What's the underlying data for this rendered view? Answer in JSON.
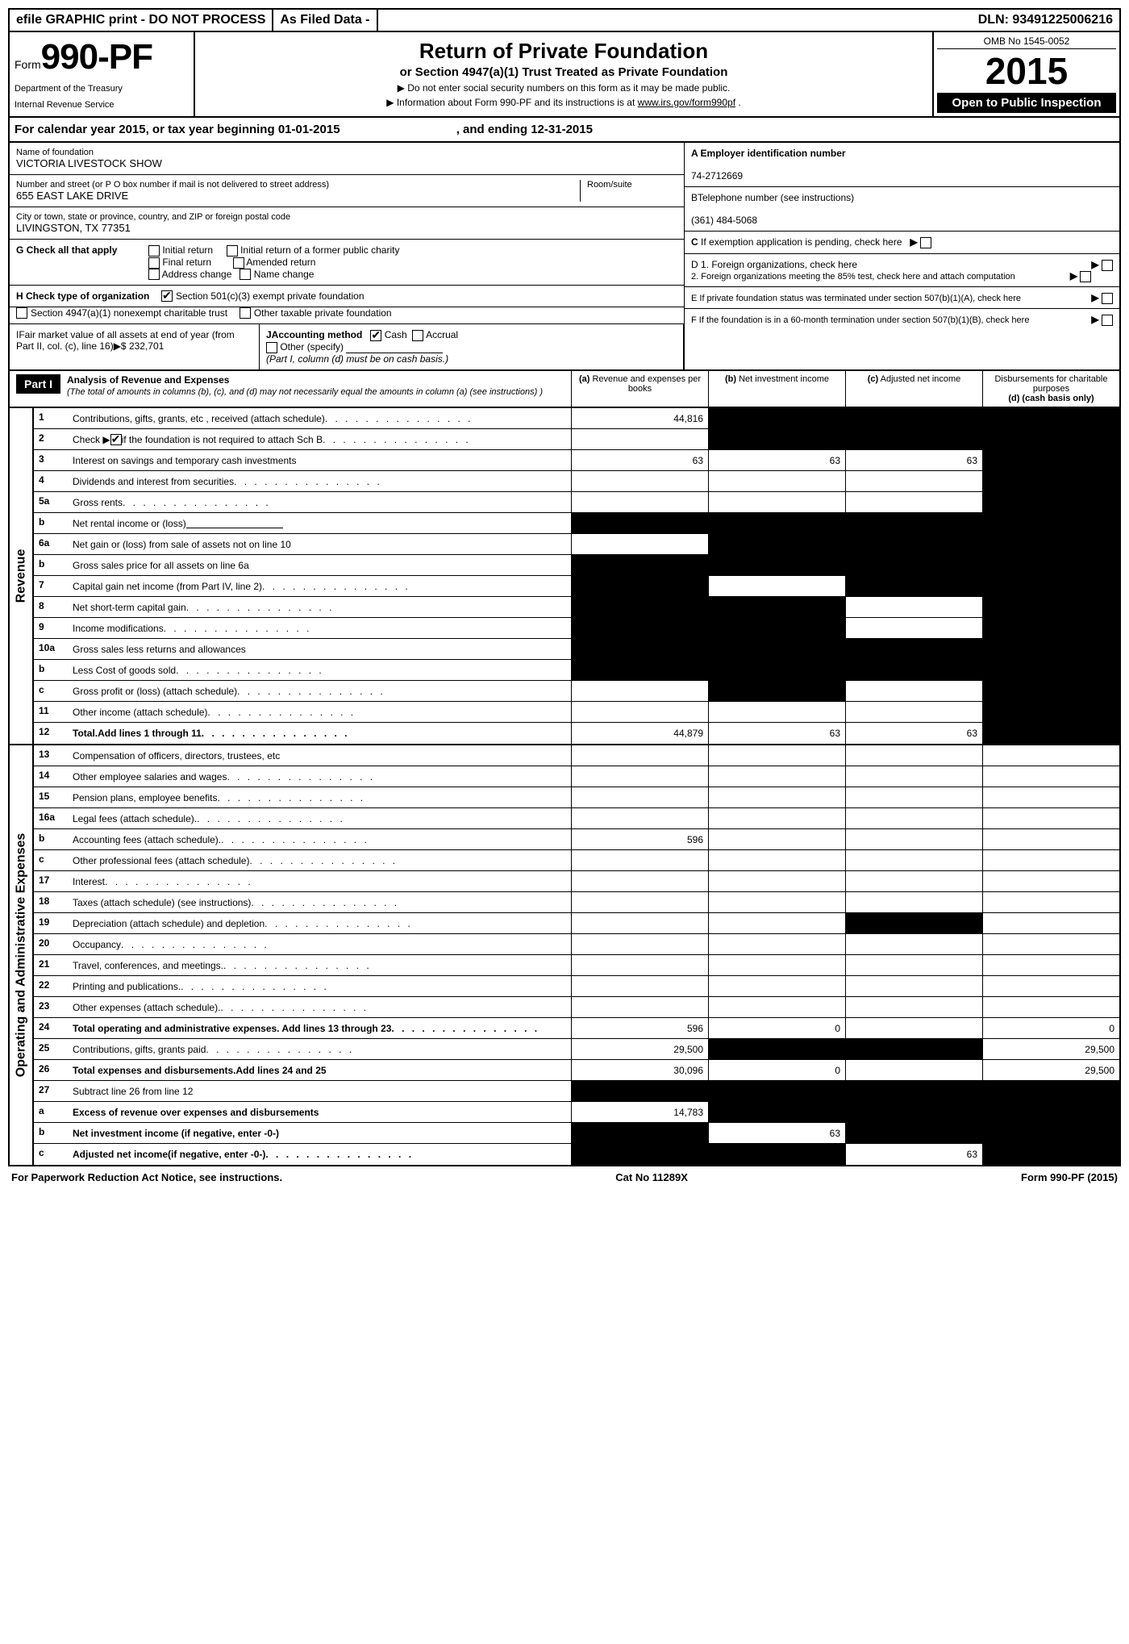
{
  "topbar": {
    "efile": "efile GRAPHIC print - DO NOT PROCESS",
    "asfiled": "As Filed Data -",
    "dln_label": "DLN:",
    "dln": "93491225006216"
  },
  "header": {
    "form_word": "Form",
    "form_num": "990-PF",
    "dept1": "Department of the Treasury",
    "dept2": "Internal Revenue Service",
    "title": "Return of Private Foundation",
    "subtitle": "or Section 4947(a)(1) Trust Treated as Private Foundation",
    "note1": "▶ Do not enter social security numbers on this form as it may be made public.",
    "note2": "▶ Information about Form 990-PF and its instructions is at ",
    "link": "www.irs.gov/form990pf",
    "omb": "OMB No 1545-0052",
    "year": "2015",
    "open": "Open to Public Inspection"
  },
  "cal": {
    "text1": "For calendar year 2015, or tax year beginning ",
    "begin": "01-01-2015",
    "text2": " , and ending ",
    "end": "12-31-2015"
  },
  "foundation": {
    "name_label": "Name of foundation",
    "name": "VICTORIA LIVESTOCK SHOW",
    "addr_label": "Number and street (or P O box number if mail is not delivered to street address)",
    "room_label": "Room/suite",
    "addr": "655 EAST LAKE DRIVE",
    "city_label": "City or town, state or province, country, and ZIP or foreign postal code",
    "city": "LIVINGSTON, TX 77351"
  },
  "right": {
    "a_label": "A Employer identification number",
    "ein": "74-2712669",
    "b_label": "BTelephone number (see instructions)",
    "phone": "(361) 484-5068",
    "c_label": "C If exemption application is pending, check here",
    "d1": "D 1. Foreign organizations, check here",
    "d2": "2. Foreign organizations meeting the 85% test, check here and attach computation",
    "e": "E If private foundation status was terminated under section 507(b)(1)(A), check here",
    "f": "F If the foundation is in a 60-month termination under section 507(b)(1)(B), check here"
  },
  "g": {
    "label": "G Check all that apply",
    "initial": "Initial return",
    "initial_former": "Initial return of a former public charity",
    "final": "Final return",
    "amended": "Amended return",
    "addr_change": "Address change",
    "name_change": "Name change"
  },
  "h": {
    "label": "H Check type of organization",
    "opt1": "Section 501(c)(3) exempt private foundation",
    "opt2": "Section 4947(a)(1) nonexempt charitable trust",
    "opt3": "Other taxable private foundation"
  },
  "i": {
    "label": "IFair market value of all assets at end of year (from Part II, col. (c), line 16)▶$ ",
    "value": "232,701"
  },
  "j": {
    "label": "JAccounting method",
    "cash": "Cash",
    "accrual": "Accrual",
    "other": "Other (specify)",
    "note": "(Part I, column (d) must be on cash basis.)"
  },
  "part1": {
    "label": "Part I",
    "title": "Analysis of Revenue and Expenses",
    "note": "(The total of amounts in columns (b), (c), and (d) may not necessarily equal the amounts in column (a) (see instructions) )",
    "col_a": "(a)",
    "col_a_txt": "Revenue and expenses per books",
    "col_b": "(b)",
    "col_b_txt": "Net investment income",
    "col_c": "(c)",
    "col_c_txt": "Adjusted net income",
    "col_d_txt": "Disbursements for charitable purposes",
    "col_d_note": "(d) (cash basis only)"
  },
  "side_labels": {
    "revenue": "Revenue",
    "expenses": "Operating and Administrative Expenses"
  },
  "lines": [
    {
      "n": "1",
      "d": "Contributions, gifts, grants, etc , received (attach schedule)",
      "dots": true,
      "a": "44,816",
      "b": "shade",
      "c": "shade",
      "dd": "shade"
    },
    {
      "n": "2",
      "d": "Check ▶ ☑ if the foundation is not required to attach Sch B",
      "dots": true,
      "a": "",
      "b": "shade",
      "c": "shade",
      "dd": "shade",
      "nothtml": true
    },
    {
      "n": "3",
      "d": "Interest on savings and temporary cash investments",
      "a": "63",
      "b": "63",
      "c": "63",
      "dd": "shade"
    },
    {
      "n": "4",
      "d": "Dividends and interest from securities",
      "dots": true,
      "a": "",
      "b": "",
      "c": "",
      "dd": "shade"
    },
    {
      "n": "5a",
      "d": "Gross rents",
      "dots": true,
      "a": "",
      "b": "",
      "c": "",
      "dd": "shade"
    },
    {
      "n": "b",
      "d": "Net rental income or (loss) ",
      "blank": true,
      "a": "shade",
      "b": "shade",
      "c": "shade",
      "dd": "shade"
    },
    {
      "n": "6a",
      "d": "Net gain or (loss) from sale of assets not on line 10",
      "a": "",
      "b": "shade",
      "c": "shade",
      "dd": "shade"
    },
    {
      "n": "b",
      "d": "Gross sales price for all assets on line 6a",
      "a": "shade",
      "b": "shade",
      "c": "shade",
      "dd": "shade"
    },
    {
      "n": "7",
      "d": "Capital gain net income (from Part IV, line 2)",
      "dots": true,
      "a": "shade",
      "b": "",
      "c": "shade",
      "dd": "shade"
    },
    {
      "n": "8",
      "d": "Net short-term capital gain",
      "dots": true,
      "a": "shade",
      "b": "shade",
      "c": "",
      "dd": "shade"
    },
    {
      "n": "9",
      "d": "Income modifications",
      "dots": true,
      "a": "shade",
      "b": "shade",
      "c": "",
      "dd": "shade"
    },
    {
      "n": "10a",
      "d": "Gross sales less returns and allowances",
      "a": "shade",
      "b": "shade",
      "c": "shade",
      "dd": "shade"
    },
    {
      "n": "b",
      "d": "Less Cost of goods sold",
      "dots": true,
      "a": "shade",
      "b": "shade",
      "c": "shade",
      "dd": "shade"
    },
    {
      "n": "c",
      "d": "Gross profit or (loss) (attach schedule)",
      "dots": true,
      "a": "",
      "b": "shade",
      "c": "",
      "dd": "shade"
    },
    {
      "n": "11",
      "d": "Other income (attach schedule)",
      "dots": true,
      "a": "",
      "b": "",
      "c": "",
      "dd": "shade"
    },
    {
      "n": "12",
      "d": "Total.Add lines 1 through 11",
      "dots": true,
      "bold": true,
      "a": "44,879",
      "b": "63",
      "c": "63",
      "dd": "shade"
    }
  ],
  "exp_lines": [
    {
      "n": "13",
      "d": "Compensation of officers, directors, trustees, etc",
      "a": "",
      "b": "",
      "c": "",
      "dd": ""
    },
    {
      "n": "14",
      "d": "Other employee salaries and wages",
      "dots": true,
      "a": "",
      "b": "",
      "c": "",
      "dd": ""
    },
    {
      "n": "15",
      "d": "Pension plans, employee benefits",
      "dots": true,
      "a": "",
      "b": "",
      "c": "",
      "dd": ""
    },
    {
      "n": "16a",
      "d": "Legal fees (attach schedule).",
      "dots": true,
      "a": "",
      "b": "",
      "c": "",
      "dd": ""
    },
    {
      "n": "b",
      "d": "Accounting fees (attach schedule).",
      "dots": true,
      "icon": true,
      "a": "596",
      "b": "",
      "c": "",
      "dd": ""
    },
    {
      "n": "c",
      "d": "Other professional fees (attach schedule)",
      "dots": true,
      "a": "",
      "b": "",
      "c": "",
      "dd": ""
    },
    {
      "n": "17",
      "d": "Interest",
      "dots": true,
      "a": "",
      "b": "",
      "c": "",
      "dd": ""
    },
    {
      "n": "18",
      "d": "Taxes (attach schedule) (see instructions)",
      "dots": true,
      "a": "",
      "b": "",
      "c": "",
      "dd": ""
    },
    {
      "n": "19",
      "d": "Depreciation (attach schedule) and depletion",
      "dots": true,
      "a": "",
      "b": "",
      "c": "shade",
      "dd": ""
    },
    {
      "n": "20",
      "d": "Occupancy",
      "dots": true,
      "a": "",
      "b": "",
      "c": "",
      "dd": ""
    },
    {
      "n": "21",
      "d": "Travel, conferences, and meetings.",
      "dots": true,
      "a": "",
      "b": "",
      "c": "",
      "dd": ""
    },
    {
      "n": "22",
      "d": "Printing and publications.",
      "dots": true,
      "a": "",
      "b": "",
      "c": "",
      "dd": ""
    },
    {
      "n": "23",
      "d": "Other expenses (attach schedule).",
      "dots": true,
      "a": "",
      "b": "",
      "c": "",
      "dd": ""
    },
    {
      "n": "24",
      "d": "Total operating and administrative expenses. Add lines 13 through 23",
      "dots": true,
      "bold": true,
      "a": "596",
      "b": "0",
      "c": "",
      "dd": "0"
    },
    {
      "n": "25",
      "d": "Contributions, gifts, grants paid",
      "dots": true,
      "a": "29,500",
      "b": "shade",
      "c": "shade",
      "dd": "29,500"
    },
    {
      "n": "26",
      "d": "Total expenses and disbursements.Add lines 24 and 25",
      "bold": true,
      "a": "30,096",
      "b": "0",
      "c": "",
      "dd": "29,500"
    },
    {
      "n": "27",
      "d": "Subtract line 26 from line 12",
      "a": "shade",
      "b": "shade",
      "c": "shade",
      "dd": "shade"
    },
    {
      "n": "a",
      "d": "Excess of revenue over expenses and disbursements",
      "bold": true,
      "a": "14,783",
      "b": "shade",
      "c": "shade",
      "dd": "shade"
    },
    {
      "n": "b",
      "d": "Net investment income (if negative, enter -0-)",
      "bold": true,
      "a": "shade",
      "b": "63",
      "c": "shade",
      "dd": "shade"
    },
    {
      "n": "c",
      "d": "Adjusted net income(if negative, enter -0-)",
      "dots": true,
      "bold": true,
      "a": "shade",
      "b": "shade",
      "c": "63",
      "dd": "shade"
    }
  ],
  "footer": {
    "left": "For Paperwork Reduction Act Notice, see instructions.",
    "mid": "Cat No 11289X",
    "right": "Form 990-PF (2015)"
  }
}
